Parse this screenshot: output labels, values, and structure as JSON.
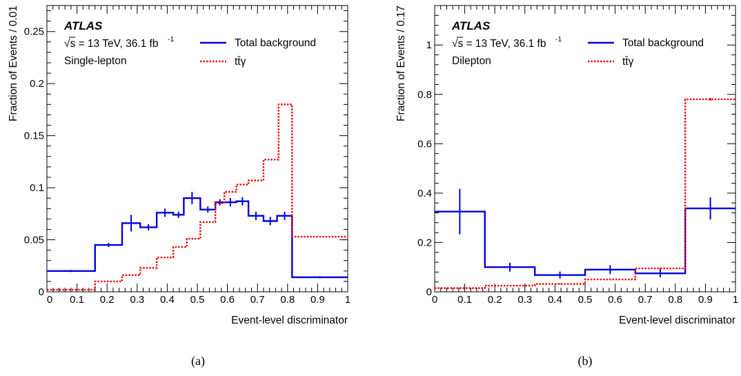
{
  "chart_data": [
    {
      "type": "line",
      "caption": "(a)",
      "xlabel": "Event-level discriminator",
      "ylabel": "Fraction of Events / 0.01",
      "xlim": [
        0,
        1
      ],
      "ylim": [
        0,
        0.275
      ],
      "xticks": [
        0,
        0.1,
        0.2,
        0.3,
        0.4,
        0.5,
        0.6,
        0.7,
        0.8,
        0.9,
        1
      ],
      "xtick_labels": [
        "0",
        "0.1",
        "0.2",
        "0.3",
        "0.4",
        "0.5",
        "0.6",
        "0.7",
        "0.8",
        "0.9",
        "1"
      ],
      "yticks": [
        0,
        0.05,
        0.1,
        0.15,
        0.2,
        0.25
      ],
      "ytick_labels": [
        "0",
        "0.05",
        "0.1",
        "0.15",
        "0.2",
        "0.25"
      ],
      "atlas_label": "ATLAS",
      "energy_label": "√s = 13 TeV, 36.1  fb",
      "energy_sup": "-1",
      "channel_label": "Single-lepton",
      "legend_position": "top-right",
      "series": [
        {
          "name": "Total background",
          "style": "solid",
          "color": "#0000dd",
          "edges": [
            0,
            0.16,
            0.25,
            0.31,
            0.365,
            0.42,
            0.455,
            0.51,
            0.56,
            0.59,
            0.63,
            0.67,
            0.72,
            0.765,
            0.815,
            1.0
          ],
          "values": [
            0.02,
            0.045,
            0.066,
            0.062,
            0.076,
            0.074,
            0.09,
            0.079,
            0.086,
            0.086,
            0.087,
            0.073,
            0.068,
            0.073,
            0.014
          ],
          "errors": [
            0.001,
            0.002,
            0.008,
            0.003,
            0.004,
            0.003,
            0.006,
            0.003,
            0.003,
            0.004,
            0.004,
            0.004,
            0.004,
            0.004,
            0.001
          ]
        },
        {
          "name": "tt̄γ",
          "style": "dotted",
          "color": "#ee0000",
          "edges": [
            0,
            0.16,
            0.25,
            0.31,
            0.365,
            0.42,
            0.465,
            0.51,
            0.56,
            0.59,
            0.63,
            0.67,
            0.72,
            0.77,
            0.815,
            1.0
          ],
          "values": [
            0.002,
            0.01,
            0.016,
            0.023,
            0.033,
            0.043,
            0.051,
            0.067,
            0.085,
            0.096,
            0.103,
            0.107,
            0.127,
            0.18,
            0.053
          ]
        }
      ]
    },
    {
      "type": "line",
      "caption": "(b)",
      "xlabel": "Event-level discriminator",
      "ylabel": "Fraction of Events / 0.17",
      "xlim": [
        0,
        1
      ],
      "ylim": [
        0,
        1.16
      ],
      "xticks": [
        0,
        0.1,
        0.2,
        0.3,
        0.4,
        0.5,
        0.6,
        0.7,
        0.8,
        0.9,
        1
      ],
      "xtick_labels": [
        "0",
        "0.1",
        "0.2",
        "0.3",
        "0.4",
        "0.5",
        "0.6",
        "0.7",
        "0.8",
        "0.9",
        "1"
      ],
      "yticks": [
        0,
        0.2,
        0.4,
        0.6,
        0.8,
        1
      ],
      "ytick_labels": [
        "0",
        "0.2",
        "0.4",
        "0.6",
        "0.8",
        "1"
      ],
      "atlas_label": "ATLAS",
      "energy_label": "√s = 13 TeV, 36.1  fb",
      "energy_sup": "-1",
      "channel_label": "Dilepton",
      "legend_position": "top-right",
      "series": [
        {
          "name": "Total background",
          "style": "solid",
          "color": "#0000dd",
          "edges": [
            0,
            0.167,
            0.333,
            0.5,
            0.667,
            0.833,
            1.0
          ],
          "values": [
            0.325,
            0.1,
            0.068,
            0.09,
            0.075,
            0.338
          ],
          "errors": [
            0.092,
            0.018,
            0.014,
            0.018,
            0.016,
            0.045
          ]
        },
        {
          "name": "tt̄γ",
          "style": "dotted",
          "color": "#ee0000",
          "edges": [
            0,
            0.167,
            0.333,
            0.5,
            0.667,
            0.833,
            1.0
          ],
          "values": [
            0.015,
            0.025,
            0.032,
            0.05,
            0.095,
            0.78
          ],
          "errors": [
            0.001,
            0.001,
            0.002,
            0.002,
            0.004,
            0.006
          ]
        }
      ]
    }
  ]
}
